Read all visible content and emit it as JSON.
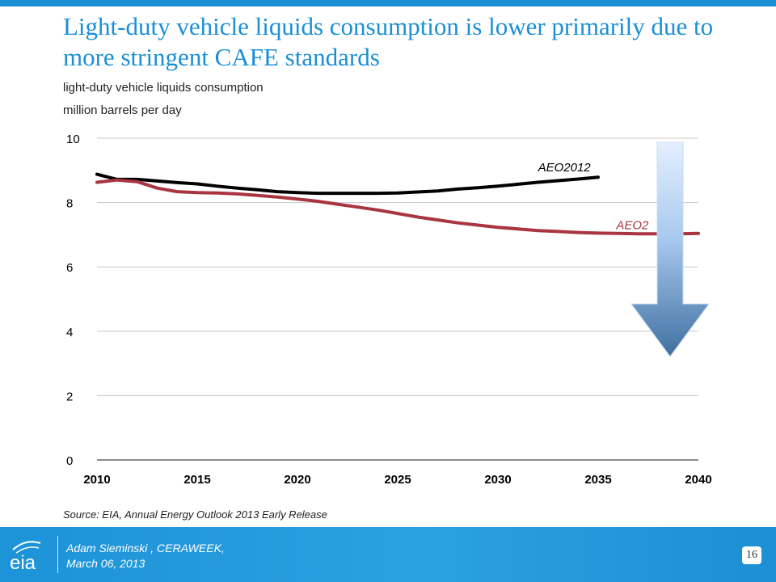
{
  "slide": {
    "title": "Light-duty vehicle liquids consumption is lower primarily due to more stringent CAFE standards",
    "ylabel_line1": "light-duty vehicle liquids consumption",
    "ylabel_line2": "million barrels per day",
    "source": "Source:  EIA, Annual Energy Outlook 2013 Early Release",
    "accent_color": "#1a8fd6"
  },
  "footer": {
    "presenter": "Adam Sieminski , CERAWEEK,",
    "date": "March 06, 2013",
    "page_number": "16",
    "logo_icon": "eia-logo-icon"
  },
  "chart_data": {
    "type": "line",
    "x": [
      2010,
      2011,
      2012,
      2013,
      2014,
      2015,
      2016,
      2017,
      2018,
      2019,
      2020,
      2021,
      2022,
      2023,
      2024,
      2025,
      2026,
      2027,
      2028,
      2029,
      2030,
      2031,
      2032,
      2033,
      2034,
      2035,
      2036,
      2037,
      2038,
      2039,
      2040
    ],
    "series": [
      {
        "name": "AEO2012",
        "color": "#000000",
        "values": [
          8.88,
          8.72,
          8.72,
          8.67,
          8.62,
          8.58,
          8.51,
          8.45,
          8.4,
          8.34,
          8.31,
          8.29,
          8.29,
          8.29,
          8.29,
          8.3,
          8.33,
          8.36,
          8.42,
          8.46,
          8.51,
          8.57,
          8.63,
          8.68,
          8.73,
          8.79,
          null,
          null,
          null,
          null,
          null
        ]
      },
      {
        "name": "AEO2013",
        "label_visible": "AEO2",
        "color": "#a83540",
        "values": [
          8.63,
          8.7,
          8.65,
          8.45,
          8.34,
          8.31,
          8.3,
          8.27,
          8.22,
          8.17,
          8.11,
          8.04,
          7.95,
          7.86,
          7.77,
          7.66,
          7.55,
          7.46,
          7.37,
          7.3,
          7.23,
          7.18,
          7.13,
          7.1,
          7.07,
          7.05,
          7.04,
          7.03,
          7.03,
          7.03,
          7.04
        ]
      }
    ],
    "xticks": [
      2010,
      2015,
      2020,
      2025,
      2030,
      2035,
      2040
    ],
    "yticks": [
      0,
      2,
      4,
      6,
      8,
      10
    ],
    "xlim": [
      2010,
      2040
    ],
    "ylim": [
      0,
      10
    ],
    "grid": "horizontal",
    "annotation": "downward-arrow"
  }
}
